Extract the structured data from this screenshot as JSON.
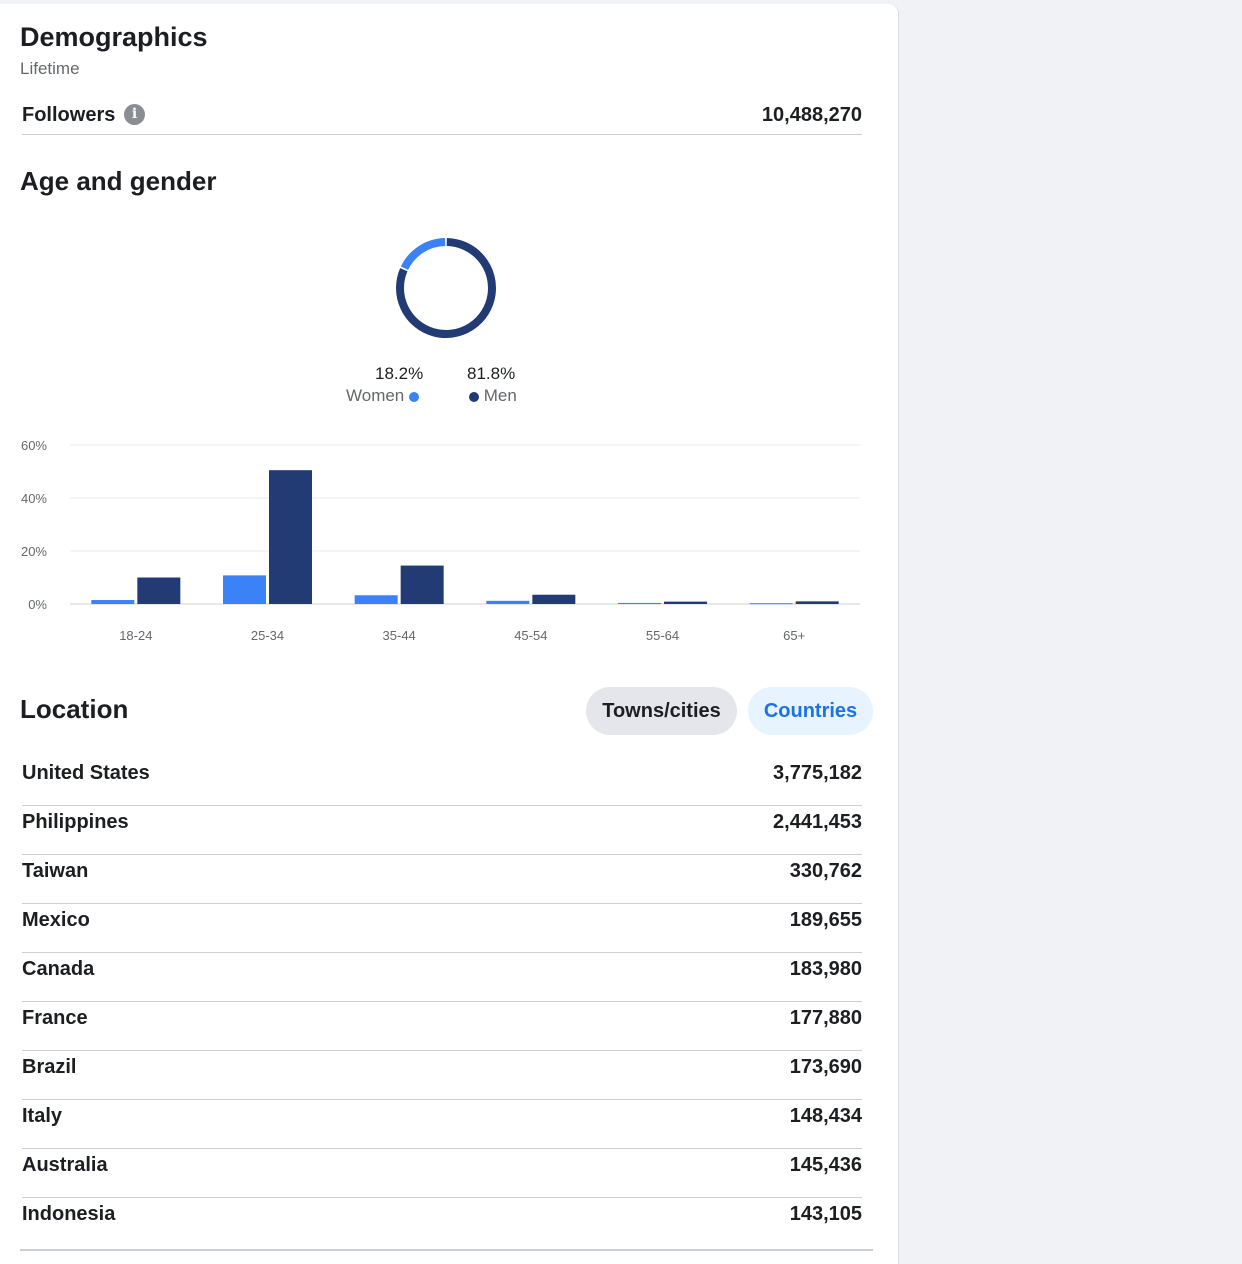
{
  "header": {
    "title": "Demographics",
    "subtitle": "Lifetime"
  },
  "followers": {
    "label": "Followers",
    "info_icon": "info-icon",
    "value": "10,488,270"
  },
  "age_gender": {
    "title": "Age and gender",
    "women": {
      "pct": "18.2%",
      "label": "Women",
      "color": "#3b82f6"
    },
    "men": {
      "pct": "81.8%",
      "label": "Men",
      "color": "#233b74"
    }
  },
  "chart_data": [
    {
      "type": "pie",
      "categories": [
        "Women",
        "Men"
      ],
      "values": [
        18.2,
        81.8
      ],
      "colors": [
        "#3b82f6",
        "#233b74"
      ]
    },
    {
      "type": "bar",
      "categories": [
        "18-24",
        "25-34",
        "35-44",
        "45-54",
        "55-64",
        "65+"
      ],
      "series": [
        {
          "name": "Women",
          "values": [
            1.5,
            10.8,
            3.3,
            1.2,
            0.4,
            0.3
          ],
          "color": "#3b82f6"
        },
        {
          "name": "Men",
          "values": [
            10.0,
            50.5,
            14.5,
            3.5,
            0.9,
            1.0
          ],
          "color": "#233b74"
        }
      ],
      "yticks": [
        "0%",
        "20%",
        "40%",
        "60%"
      ],
      "ylim": [
        0,
        60
      ],
      "grid": true
    }
  ],
  "location": {
    "title": "Location",
    "tabs": {
      "towns": "Towns/cities",
      "countries": "Countries"
    },
    "rows": [
      {
        "name": "United States",
        "value": "3,775,182"
      },
      {
        "name": "Philippines",
        "value": "2,441,453"
      },
      {
        "name": "Taiwan",
        "value": "330,762"
      },
      {
        "name": "Mexico",
        "value": "189,655"
      },
      {
        "name": "Canada",
        "value": "183,980"
      },
      {
        "name": "France",
        "value": "177,880"
      },
      {
        "name": "Brazil",
        "value": "173,690"
      },
      {
        "name": "Italy",
        "value": "148,434"
      },
      {
        "name": "Australia",
        "value": "145,436"
      },
      {
        "name": "Indonesia",
        "value": "143,105"
      }
    ]
  }
}
